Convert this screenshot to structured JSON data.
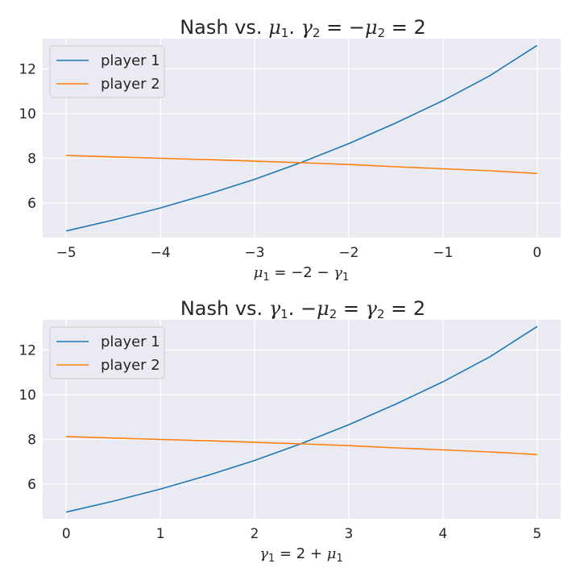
{
  "chart_data": [
    {
      "type": "line",
      "title": "Nash vs. μ1.    γ2 = −μ2 = 2",
      "xlabel": "μ1 = −2 − γ1",
      "ylabel": "",
      "xlim": [
        -5.25,
        0.25
      ],
      "ylim": [
        4.45,
        13.35
      ],
      "grid": true,
      "legend_position": "top-left",
      "xticks": [
        -5,
        -4,
        -3,
        -2,
        -1,
        0
      ],
      "xtick_labels": [
        "−5",
        "−4",
        "−3",
        "−2",
        "−1",
        "0"
      ],
      "yticks": [
        6,
        8,
        10,
        12
      ],
      "ytick_labels": [
        "6",
        "8",
        "10",
        "12"
      ],
      "x": [
        -5,
        -4.5,
        -4,
        -3.5,
        -3,
        -2.5,
        -2,
        -1.5,
        -1,
        -0.5,
        0
      ],
      "series": [
        {
          "name": "player 1",
          "color": "#1f77b4",
          "values": [
            4.75,
            5.24,
            5.78,
            6.39,
            7.06,
            7.82,
            8.66,
            9.58,
            10.58,
            11.7,
            13.05
          ]
        },
        {
          "name": "player 2",
          "color": "#ff7f0e",
          "values": [
            8.13,
            8.06,
            8.0,
            7.94,
            7.87,
            7.8,
            7.72,
            7.62,
            7.53,
            7.44,
            7.32
          ]
        }
      ]
    },
    {
      "type": "line",
      "title": "Nash vs. γ1.    −μ2 = γ2 = 2",
      "xlabel": "γ1 = 2 + μ1",
      "ylabel": "",
      "xlim": [
        -0.25,
        5.25
      ],
      "ylim": [
        4.45,
        13.35
      ],
      "grid": true,
      "legend_position": "top-left",
      "xticks": [
        0,
        1,
        2,
        3,
        4,
        5
      ],
      "xtick_labels": [
        "0",
        "1",
        "2",
        "3",
        "4",
        "5"
      ],
      "yticks": [
        6,
        8,
        10,
        12
      ],
      "ytick_labels": [
        "6",
        "8",
        "10",
        "12"
      ],
      "x": [
        0,
        0.5,
        1,
        1.5,
        2,
        2.5,
        3,
        3.5,
        4,
        4.5,
        5
      ],
      "series": [
        {
          "name": "player 1",
          "color": "#1f77b4",
          "values": [
            4.75,
            5.24,
            5.78,
            6.39,
            7.06,
            7.82,
            8.66,
            9.58,
            10.58,
            11.7,
            13.05
          ]
        },
        {
          "name": "player 2",
          "color": "#ff7f0e",
          "values": [
            8.13,
            8.06,
            8.0,
            7.94,
            7.87,
            7.8,
            7.72,
            7.62,
            7.53,
            7.44,
            7.32
          ]
        }
      ]
    }
  ]
}
